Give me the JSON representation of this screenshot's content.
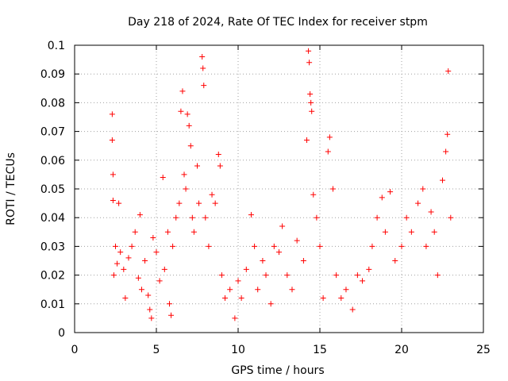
{
  "chart_data": {
    "type": "scatter",
    "title": "Day 218 of 2024, Rate Of TEC Index for receiver stpm",
    "xlabel": "GPS time / hours",
    "ylabel": "ROTI / TECUs",
    "xlim": [
      0,
      25
    ],
    "ylim": [
      0,
      0.1
    ],
    "x_ticks": [
      0,
      5,
      10,
      15,
      20,
      25
    ],
    "x_tick_labels": [
      "0",
      "5",
      "10",
      "15",
      "20",
      "25"
    ],
    "y_ticks": [
      0,
      0.01,
      0.02,
      0.03,
      0.04,
      0.05,
      0.06,
      0.07,
      0.08,
      0.09,
      0.1
    ],
    "y_tick_labels": [
      "0",
      "0.01",
      "0.02",
      "0.03",
      "0.04",
      "0.05",
      "0.06",
      "0.07",
      "0.08",
      "0.09",
      "0.1"
    ],
    "grid": true,
    "marker": "+",
    "marker_color": "#ff0000",
    "series": [
      {
        "name": "stpm",
        "points": [
          [
            2.3,
            0.076
          ],
          [
            2.3,
            0.067
          ],
          [
            2.35,
            0.055
          ],
          [
            2.35,
            0.046
          ],
          [
            2.4,
            0.02
          ],
          [
            2.5,
            0.03
          ],
          [
            2.6,
            0.024
          ],
          [
            2.7,
            0.045
          ],
          [
            2.8,
            0.028
          ],
          [
            3.0,
            0.022
          ],
          [
            3.1,
            0.012
          ],
          [
            3.3,
            0.026
          ],
          [
            3.5,
            0.03
          ],
          [
            3.7,
            0.035
          ],
          [
            3.9,
            0.019
          ],
          [
            4.0,
            0.041
          ],
          [
            4.1,
            0.015
          ],
          [
            4.3,
            0.025
          ],
          [
            4.5,
            0.013
          ],
          [
            4.6,
            0.008
          ],
          [
            4.7,
            0.005
          ],
          [
            4.8,
            0.033
          ],
          [
            5.0,
            0.028
          ],
          [
            5.2,
            0.018
          ],
          [
            5.4,
            0.054
          ],
          [
            5.5,
            0.022
          ],
          [
            5.7,
            0.035
          ],
          [
            5.8,
            0.01
          ],
          [
            5.9,
            0.006
          ],
          [
            6.0,
            0.03
          ],
          [
            6.2,
            0.04
          ],
          [
            6.4,
            0.045
          ],
          [
            6.5,
            0.077
          ],
          [
            6.6,
            0.084
          ],
          [
            6.7,
            0.055
          ],
          [
            6.8,
            0.05
          ],
          [
            6.9,
            0.076
          ],
          [
            7.0,
            0.072
          ],
          [
            7.1,
            0.065
          ],
          [
            7.2,
            0.04
          ],
          [
            7.3,
            0.035
          ],
          [
            7.5,
            0.058
          ],
          [
            7.6,
            0.045
          ],
          [
            7.8,
            0.096
          ],
          [
            7.85,
            0.092
          ],
          [
            7.9,
            0.086
          ],
          [
            8.0,
            0.04
          ],
          [
            8.2,
            0.03
          ],
          [
            8.4,
            0.048
          ],
          [
            8.6,
            0.045
          ],
          [
            8.8,
            0.062
          ],
          [
            8.9,
            0.058
          ],
          [
            9.0,
            0.02
          ],
          [
            9.2,
            0.012
          ],
          [
            9.5,
            0.015
          ],
          [
            9.8,
            0.005
          ],
          [
            10.0,
            0.018
          ],
          [
            10.2,
            0.012
          ],
          [
            10.5,
            0.022
          ],
          [
            10.8,
            0.041
          ],
          [
            11.0,
            0.03
          ],
          [
            11.2,
            0.015
          ],
          [
            11.5,
            0.025
          ],
          [
            11.7,
            0.02
          ],
          [
            12.0,
            0.01
          ],
          [
            12.2,
            0.03
          ],
          [
            12.5,
            0.028
          ],
          [
            12.7,
            0.037
          ],
          [
            13.0,
            0.02
          ],
          [
            13.3,
            0.015
          ],
          [
            13.6,
            0.032
          ],
          [
            14.0,
            0.025
          ],
          [
            14.2,
            0.067
          ],
          [
            14.3,
            0.098
          ],
          [
            14.35,
            0.094
          ],
          [
            14.4,
            0.083
          ],
          [
            14.45,
            0.08
          ],
          [
            14.5,
            0.077
          ],
          [
            14.6,
            0.048
          ],
          [
            14.8,
            0.04
          ],
          [
            15.0,
            0.03
          ],
          [
            15.2,
            0.012
          ],
          [
            15.5,
            0.063
          ],
          [
            15.6,
            0.068
          ],
          [
            15.8,
            0.05
          ],
          [
            16.0,
            0.02
          ],
          [
            16.3,
            0.012
          ],
          [
            16.6,
            0.015
          ],
          [
            17.0,
            0.008
          ],
          [
            17.3,
            0.02
          ],
          [
            17.6,
            0.018
          ],
          [
            18.0,
            0.022
          ],
          [
            18.2,
            0.03
          ],
          [
            18.5,
            0.04
          ],
          [
            18.8,
            0.047
          ],
          [
            19.0,
            0.035
          ],
          [
            19.3,
            0.049
          ],
          [
            19.6,
            0.025
          ],
          [
            20.0,
            0.03
          ],
          [
            20.3,
            0.04
          ],
          [
            20.6,
            0.035
          ],
          [
            21.0,
            0.045
          ],
          [
            21.3,
            0.05
          ],
          [
            21.5,
            0.03
          ],
          [
            21.8,
            0.042
          ],
          [
            22.0,
            0.035
          ],
          [
            22.2,
            0.02
          ],
          [
            22.5,
            0.053
          ],
          [
            22.7,
            0.063
          ],
          [
            22.8,
            0.069
          ],
          [
            22.85,
            0.091
          ],
          [
            23.0,
            0.04
          ]
        ]
      }
    ]
  }
}
